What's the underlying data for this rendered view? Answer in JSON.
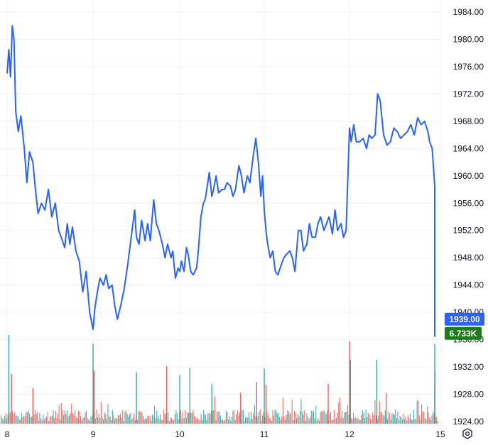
{
  "chart_data": {
    "type": "line",
    "y_ticks": [
      "1924.00",
      "1928.00",
      "1932.00",
      "1936.00",
      "1940.00",
      "1944.00",
      "1948.00",
      "1952.00",
      "1956.00",
      "1960.00",
      "1964.00",
      "1968.00",
      "1972.00",
      "1976.00",
      "1980.00",
      "1984.00"
    ],
    "x_ticks": [
      "8",
      "9",
      "10",
      "11",
      "12",
      "15"
    ],
    "ylim": [
      1924,
      1985.5
    ],
    "grid": true,
    "price_series": {
      "color": "#2962ff",
      "x": [
        8.0,
        8.02,
        8.04,
        8.06,
        8.08,
        8.1,
        8.13,
        8.16,
        8.2,
        8.23,
        8.26,
        8.3,
        8.33,
        8.36,
        8.4,
        8.44,
        8.48,
        8.52,
        8.56,
        8.6,
        8.63,
        8.67,
        8.7,
        8.73,
        8.76,
        8.8,
        8.84,
        8.88,
        8.92,
        8.96,
        9.0,
        9.02,
        9.05,
        9.08,
        9.12,
        9.15,
        9.18,
        9.22,
        9.25,
        9.28,
        9.32,
        9.36,
        9.4,
        9.44,
        9.48,
        9.5,
        9.53,
        9.56,
        9.6,
        9.63,
        9.66,
        9.7,
        9.73,
        9.76,
        9.8,
        9.83,
        9.86,
        9.9,
        9.92,
        9.95,
        9.98,
        10.0,
        10.02,
        10.05,
        10.08,
        10.1,
        10.13,
        10.16,
        10.2,
        10.22,
        10.25,
        10.28,
        10.3,
        10.32,
        10.35,
        10.38,
        10.4,
        10.43,
        10.46,
        10.5,
        10.53,
        10.56,
        10.6,
        10.63,
        10.66,
        10.7,
        10.73,
        10.76,
        10.8,
        10.83,
        10.86,
        10.9,
        10.93,
        10.96,
        10.98,
        11.0,
        11.02,
        11.04,
        11.07,
        11.1,
        11.13,
        11.16,
        11.2,
        11.23,
        11.26,
        11.3,
        11.33,
        11.36,
        11.4,
        11.43,
        11.46,
        11.5,
        11.53,
        11.56,
        11.6,
        11.63,
        11.66,
        11.7,
        11.73,
        11.76,
        11.8,
        11.83,
        11.86,
        11.9,
        11.93,
        11.96,
        12.0,
        12.02,
        12.05,
        12.08,
        12.12,
        12.16,
        12.2,
        12.23,
        12.26,
        12.3,
        12.33,
        12.36,
        12.4,
        12.44,
        12.48,
        12.52,
        12.56,
        12.6,
        12.64,
        12.68,
        12.72,
        12.76,
        12.8,
        12.84,
        12.88,
        12.92,
        12.94,
        12.97,
        13.0,
        13.02,
        13.05,
        13.08,
        13.1,
        13.11,
        13.12,
        13.13,
        13.14,
        13.15
      ],
      "y": [
        1975.0,
        1978.5,
        1974.5,
        1982.0,
        1980.0,
        1969.5,
        1966.5,
        1968.8,
        1964.0,
        1959.0,
        1963.5,
        1962.0,
        1958.0,
        1954.5,
        1956.0,
        1955.0,
        1958.0,
        1954.0,
        1956.0,
        1952.0,
        1951.0,
        1949.5,
        1953.0,
        1950.0,
        1952.5,
        1949.0,
        1947.5,
        1943.0,
        1946.0,
        1940.0,
        1937.5,
        1940.5,
        1943.0,
        1945.0,
        1944.0,
        1945.5,
        1943.5,
        1944.0,
        1941.0,
        1939.0,
        1941.0,
        1943.5,
        1947.0,
        1951.0,
        1955.0,
        1951.0,
        1950.0,
        1953.5,
        1950.5,
        1953.0,
        1950.5,
        1956.5,
        1953.0,
        1952.0,
        1950.0,
        1948.0,
        1950.0,
        1948.0,
        1949.0,
        1945.0,
        1946.5,
        1946.0,
        1947.5,
        1946.0,
        1949.5,
        1948.5,
        1946.0,
        1945.5,
        1946.5,
        1949.0,
        1954.0,
        1956.0,
        1956.5,
        1958.0,
        1960.5,
        1957.0,
        1958.0,
        1960.0,
        1957.5,
        1958.0,
        1958.0,
        1959.0,
        1958.5,
        1957.0,
        1958.0,
        1961.5,
        1960.0,
        1957.5,
        1960.0,
        1959.0,
        1962.0,
        1965.5,
        1962.0,
        1957.0,
        1960.0,
        1955.0,
        1952.0,
        1950.0,
        1948.0,
        1949.0,
        1946.0,
        1945.5,
        1947.0,
        1948.0,
        1948.5,
        1949.0,
        1948.0,
        1946.0,
        1952.0,
        1952.0,
        1949.0,
        1950.0,
        1953.0,
        1951.0,
        1951.0,
        1953.0,
        1954.0,
        1952.0,
        1953.0,
        1954.0,
        1951.5,
        1955.0,
        1952.0,
        1953.0,
        1951.0,
        1952.0,
        1967.0,
        1965.0,
        1967.5,
        1965.0,
        1965.0,
        1965.5,
        1964.0,
        1966.0,
        1965.5,
        1966.0,
        1972.0,
        1971.0,
        1966.0,
        1964.5,
        1965.0,
        1967.0,
        1966.5,
        1965.5,
        1966.0,
        1966.5,
        1967.5,
        1966.0,
        1968.5,
        1967.5,
        1968.0,
        1966.5,
        1965.0,
        1964.0,
        1958.5,
        1956.0,
        1952.0,
        1948.0,
        1943.0,
        1942.5,
        1936.5,
        1939.0,
        1938.5,
        1939.0
      ]
    },
    "volume_series": {
      "up_color": "#26a69a",
      "down_color": "#ef5350",
      "spikes": [
        {
          "x": 8.02,
          "v": 1.0,
          "up": true
        },
        {
          "x": 8.05,
          "v": 0.56,
          "up": false
        },
        {
          "x": 8.3,
          "v": 0.4,
          "up": false
        },
        {
          "x": 9.0,
          "v": 0.9,
          "up": true
        },
        {
          "x": 9.01,
          "v": 0.6,
          "up": false
        },
        {
          "x": 9.5,
          "v": 0.58,
          "up": true
        },
        {
          "x": 9.85,
          "v": 0.65,
          "up": false
        },
        {
          "x": 10.0,
          "v": 0.55,
          "up": true
        },
        {
          "x": 10.12,
          "v": 0.63,
          "up": true
        },
        {
          "x": 10.38,
          "v": 0.45,
          "up": true
        },
        {
          "x": 10.72,
          "v": 0.35,
          "up": false
        },
        {
          "x": 10.91,
          "v": 0.47,
          "up": false
        },
        {
          "x": 11.0,
          "v": 0.62,
          "up": true
        },
        {
          "x": 11.02,
          "v": 0.44,
          "up": false
        },
        {
          "x": 11.75,
          "v": 0.45,
          "up": false
        },
        {
          "x": 12.0,
          "v": 0.93,
          "up": false
        },
        {
          "x": 12.01,
          "v": 0.72,
          "up": true
        },
        {
          "x": 12.32,
          "v": 0.72,
          "up": true
        },
        {
          "x": 12.43,
          "v": 0.35,
          "up": false
        },
        {
          "x": 13.05,
          "v": 0.6,
          "up": true
        },
        {
          "x": 13.08,
          "v": 0.58,
          "up": false
        },
        {
          "x": 13.11,
          "v": 0.42,
          "up": false
        },
        {
          "x": 13.15,
          "v": 0.9,
          "up": true
        }
      ]
    },
    "last_price": {
      "label": "1939.00",
      "value": 1939.0,
      "color": "#2962ff"
    },
    "last_volume": {
      "label": "6.733K",
      "color": "#1b7d18"
    }
  },
  "controls": {
    "settings_icon": "gear-icon"
  }
}
